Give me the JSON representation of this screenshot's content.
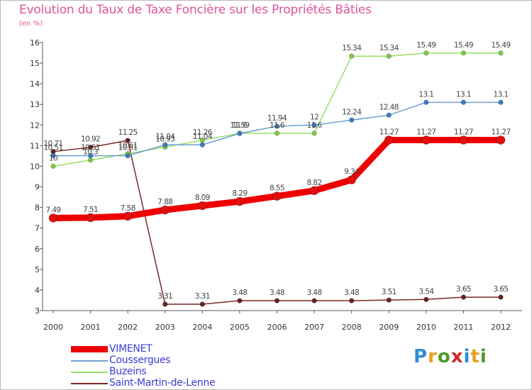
{
  "title": "Evolution du Taux de Taxe Foncière sur les Propriétés Bâties",
  "unit": "(en %)",
  "logo": {
    "text": "Proxiti",
    "letters": [
      "P",
      "r",
      "o",
      "x",
      "i",
      "t",
      "i"
    ],
    "colors": [
      "#2a8fd6",
      "#e8a020",
      "#4a9a2a",
      "#d02a2a",
      "#2a8fd6",
      "#e8a020",
      "#4a9a2a"
    ]
  },
  "chart_data": {
    "type": "line",
    "title": "Evolution du Taux de Taxe Foncière sur les Propriétés Bâties",
    "ylabel": "(en %)",
    "xlabel": "",
    "ylim": [
      3,
      16
    ],
    "yticks": [
      3,
      4,
      5,
      6,
      7,
      8,
      9,
      10,
      11,
      12,
      13,
      14,
      15,
      16
    ],
    "categories": [
      "2000",
      "2001",
      "2002",
      "2003",
      "2004",
      "2005",
      "2006",
      "2007",
      "2008",
      "2009",
      "2010",
      "2011",
      "2012"
    ],
    "series": [
      {
        "name": "VIMENET",
        "color": "#ee0000",
        "marker": "#e01010",
        "width": 9,
        "markerR": 6,
        "values": [
          7.49,
          7.51,
          7.58,
          7.88,
          8.09,
          8.29,
          8.55,
          8.82,
          9.34,
          11.27,
          11.27,
          11.27,
          11.27
        ],
        "labels": [
          "7.49",
          "7.51",
          "7.58",
          "7.88",
          "8.09",
          "8.29",
          "8.55",
          "8.82",
          "9.34",
          "11.27",
          "11.27",
          "11.27",
          "11.27"
        ]
      },
      {
        "name": "Coussergues",
        "color": "#6fa0d2",
        "marker": "#3a7fc4",
        "width": 1.5,
        "markerR": 3.3,
        "values": [
          10.51,
          10.51,
          10.51,
          11.04,
          11.04,
          11.59,
          11.94,
          12,
          12.24,
          12.48,
          13.1,
          13.1,
          13.1
        ],
        "labels": [
          "10.51",
          "10.51",
          "10.51",
          "11.04",
          "11.04",
          "11.59",
          "11.94",
          "12",
          "12.24",
          "12.48",
          "13.1",
          "13.1",
          "13.1"
        ]
      },
      {
        "name": "Buzeins",
        "color": "#99dd66",
        "marker": "#7fcc44",
        "width": 1.5,
        "markerR": 3.3,
        "values": [
          10,
          10.3,
          10.61,
          10.93,
          11.26,
          11.6,
          11.6,
          11.6,
          15.34,
          15.34,
          15.49,
          15.49,
          15.49
        ],
        "labels": [
          "10",
          "10.3",
          "10.61",
          "10.93",
          "11.26",
          "11.6",
          "11.6",
          "11.6",
          "15.34",
          "15.34",
          "15.49",
          "15.49",
          "15.49"
        ]
      },
      {
        "name": "Saint-Martin-de-Lenne",
        "color": "#7a2a2a",
        "marker": "#6b1f1f",
        "width": 1.5,
        "markerR": 3.3,
        "values": [
          10.71,
          10.92,
          11.25,
          3.31,
          3.31,
          3.48,
          3.48,
          3.48,
          3.48,
          3.51,
          3.54,
          3.65,
          3.65
        ],
        "labels": [
          "10.71",
          "10.92",
          "11.25",
          "3.31",
          "3.31",
          "3.48",
          "3.48",
          "3.48",
          "3.48",
          "3.51",
          "3.54",
          "3.65",
          "3.65"
        ]
      }
    ],
    "legend_position": "bottom-left"
  }
}
